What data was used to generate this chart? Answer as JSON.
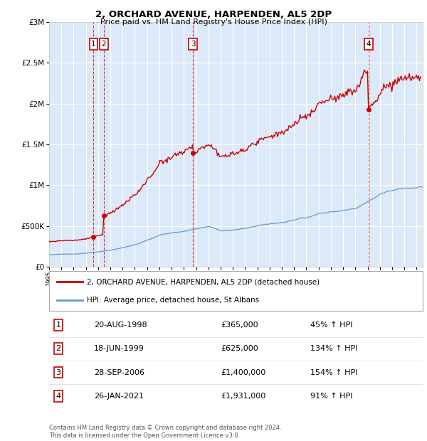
{
  "title": "2, ORCHARD AVENUE, HARPENDEN, AL5 2DP",
  "subtitle": "Price paid vs. HM Land Registry's House Price Index (HPI)",
  "footer": "Contains HM Land Registry data © Crown copyright and database right 2024.\nThis data is licensed under the Open Government Licence v3.0.",
  "legend_line1": "2, ORCHARD AVENUE, HARPENDEN, AL5 2DP (detached house)",
  "legend_line2": "HPI: Average price, detached house, St Albans",
  "transactions": [
    {
      "num": 1,
      "date": "20-AUG-1998",
      "price": "£365,000",
      "pct": "45% ↑ HPI",
      "year": 1998.63
    },
    {
      "num": 2,
      "date": "18-JUN-1999",
      "price": "£625,000",
      "pct": "134% ↑ HPI",
      "year": 1999.46
    },
    {
      "num": 3,
      "date": "28-SEP-2006",
      "price": "£1,400,000",
      "pct": "154% ↑ HPI",
      "year": 2006.74
    },
    {
      "num": 4,
      "date": "26-JAN-2021",
      "price": "£1,931,000",
      "pct": "91% ↑ HPI",
      "year": 2021.07
    }
  ],
  "transaction_prices": [
    365000,
    625000,
    1400000,
    1931000
  ],
  "plot_bg_color": "#dce9f8",
  "red_color": "#cc0000",
  "blue_color": "#6699cc",
  "grid_color": "#ffffff",
  "ylim": [
    0,
    3000000
  ],
  "xlim_start": 1995.0,
  "xlim_end": 2025.5
}
